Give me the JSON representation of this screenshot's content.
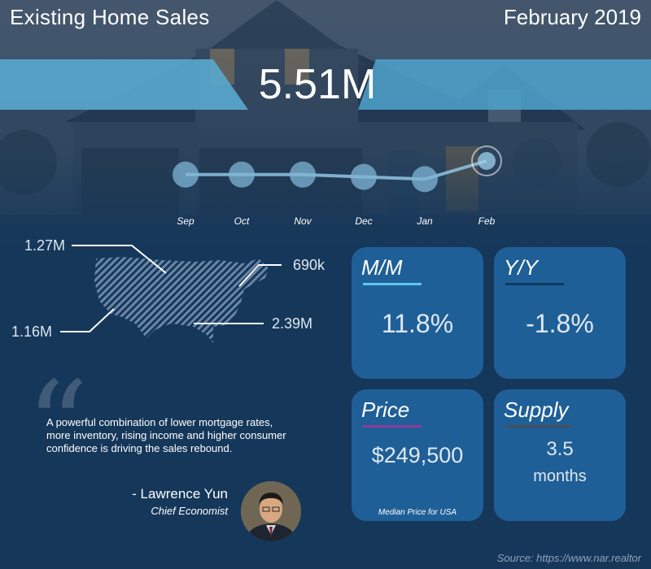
{
  "header": {
    "title": "Existing Home Sales",
    "date": "February 2019",
    "headline_value": "5.51M"
  },
  "trend": {
    "months": [
      "Sep",
      "Oct",
      "Nov",
      "Dec",
      "Jan",
      "Feb"
    ],
    "levels": [
      0.4,
      0.4,
      0.4,
      0.3,
      0.2,
      1.0
    ],
    "highlight": "Feb",
    "line_color": "#8fc4e3"
  },
  "regions": {
    "west": "1.16M",
    "midwest": "1.27M",
    "northeast": "690k",
    "south": "2.39M"
  },
  "cards": {
    "mm": {
      "label": "M/M",
      "value": "11.8%",
      "accent": "#5bc8f0"
    },
    "yy": {
      "label": "Y/Y",
      "value": "-1.8%",
      "accent": "#0f3a62"
    },
    "price": {
      "label": "Price",
      "value": "$249,500",
      "note": "Median Price for USA",
      "accent": "#8e3b9a"
    },
    "supply": {
      "label": "Supply",
      "value": "3.5",
      "unit": "months",
      "accent": "#4a4e58"
    }
  },
  "quote": {
    "text": "A powerful combination of lower mortgage rates, more inventory, rising income and higher consumer confidence is driving the sales rebound.",
    "name": "- Lawrence Yun",
    "role": "Chief Economist"
  },
  "source": "Source: https://www.nar.realtor"
}
